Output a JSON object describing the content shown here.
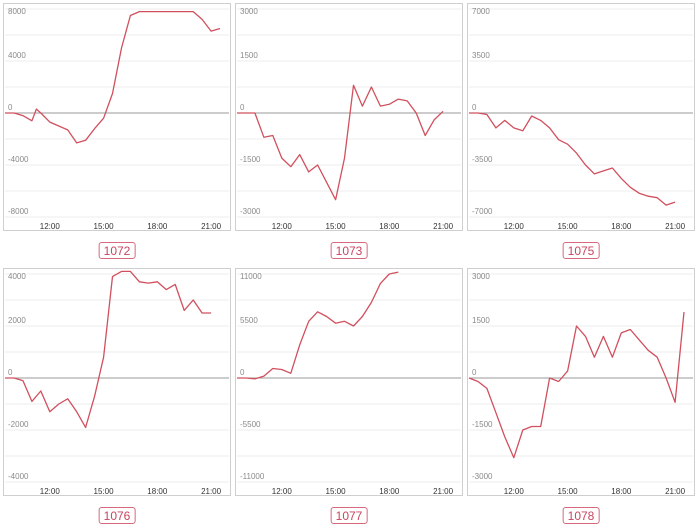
{
  "colors": {
    "line": "#d0505e",
    "zero": "#9a9a9a",
    "grid": "#ececec",
    "frame": "#cfcfcf",
    "tag": "#c8455f"
  },
  "chart_data": [
    {
      "type": "line",
      "title": "1072",
      "x_ticks": [
        "12:00",
        "15:00",
        "18:00",
        "21:00"
      ],
      "y_ticks": [
        8000,
        4000,
        0,
        -4000,
        -8000
      ],
      "ylim": [
        -8000,
        8000
      ],
      "x": [
        "09:30",
        "10:00",
        "10:30",
        "11:00",
        "11:15",
        "11:30",
        "12:00",
        "12:30",
        "13:00",
        "13:30",
        "14:00",
        "14:30",
        "15:00",
        "15:30",
        "16:00",
        "16:30",
        "17:00",
        "18:00",
        "19:00",
        "20:00",
        "20:30",
        "21:00",
        "21:30"
      ],
      "values": [
        0,
        0,
        -200,
        -600,
        300,
        0,
        -700,
        -1000,
        -1300,
        -2300,
        -2100,
        -1200,
        -400,
        1500,
        5000,
        7500,
        7800,
        7800,
        7800,
        7800,
        7200,
        6300,
        6500
      ]
    },
    {
      "type": "line",
      "title": "1073",
      "x_ticks": [
        "12:00",
        "15:00",
        "18:00",
        "21:00"
      ],
      "y_ticks": [
        3000,
        1500,
        0,
        -1500,
        -3000
      ],
      "ylim": [
        -3000,
        3000
      ],
      "x": [
        "09:30",
        "10:00",
        "10:30",
        "11:00",
        "11:30",
        "12:00",
        "12:30",
        "13:00",
        "13:30",
        "14:00",
        "14:30",
        "15:00",
        "15:30",
        "16:00",
        "16:30",
        "17:00",
        "17:30",
        "18:00",
        "18:30",
        "19:00",
        "19:30",
        "20:00",
        "20:30",
        "21:00"
      ],
      "values": [
        0,
        0,
        0,
        -700,
        -650,
        -1300,
        -1550,
        -1200,
        -1700,
        -1500,
        -2000,
        -2500,
        -1300,
        800,
        200,
        750,
        200,
        250,
        400,
        350,
        0,
        -650,
        -200,
        50
      ]
    },
    {
      "type": "line",
      "title": "1075",
      "x_ticks": [
        "12:00",
        "15:00",
        "18:00",
        "21:00"
      ],
      "y_ticks": [
        7000,
        3500,
        0,
        -3500,
        -7000
      ],
      "ylim": [
        -7000,
        7000
      ],
      "x": [
        "09:30",
        "10:00",
        "10:30",
        "11:00",
        "11:30",
        "12:00",
        "12:30",
        "13:00",
        "13:30",
        "14:00",
        "14:30",
        "15:00",
        "15:30",
        "16:00",
        "16:30",
        "17:00",
        "17:30",
        "18:00",
        "18:30",
        "19:00",
        "19:30",
        "20:00",
        "20:30",
        "21:00"
      ],
      "values": [
        0,
        0,
        -100,
        -1000,
        -500,
        -1000,
        -1200,
        -200,
        -500,
        -1000,
        -1800,
        -2100,
        -2700,
        -3500,
        -4100,
        -3900,
        -3700,
        -4400,
        -5000,
        -5400,
        -5600,
        -5700,
        -6200,
        -6000
      ]
    },
    {
      "type": "line",
      "title": "1076",
      "x_ticks": [
        "12:00",
        "15:00",
        "18:00",
        "21:00"
      ],
      "y_ticks": [
        4000,
        2000,
        0,
        -2000,
        -4000
      ],
      "ylim": [
        -4000,
        4000
      ],
      "x": [
        "09:30",
        "10:00",
        "10:30",
        "11:00",
        "11:30",
        "12:00",
        "12:30",
        "13:00",
        "13:30",
        "14:00",
        "14:30",
        "15:00",
        "15:30",
        "16:00",
        "16:30",
        "17:00",
        "17:30",
        "18:00",
        "18:30",
        "19:00",
        "19:30",
        "20:00",
        "20:30",
        "21:00"
      ],
      "values": [
        0,
        0,
        -100,
        -900,
        -500,
        -1300,
        -1000,
        -800,
        -1300,
        -1900,
        -700,
        800,
        3900,
        4100,
        4100,
        3700,
        3650,
        3700,
        3400,
        3600,
        2600,
        3000,
        2500,
        2500
      ]
    },
    {
      "type": "line",
      "title": "1077",
      "x_ticks": [
        "12:00",
        "15:00",
        "18:00",
        "21:00"
      ],
      "y_ticks": [
        11000,
        5500,
        0,
        -5500,
        -11000
      ],
      "ylim": [
        -11000,
        11000
      ],
      "x": [
        "09:30",
        "10:00",
        "10:30",
        "11:00",
        "11:30",
        "12:00",
        "12:30",
        "13:00",
        "13:30",
        "14:00",
        "14:30",
        "15:00",
        "15:30",
        "16:00",
        "16:30",
        "17:00",
        "17:30",
        "18:00",
        "18:30"
      ],
      "values": [
        0,
        0,
        -100,
        200,
        1000,
        900,
        500,
        3500,
        6000,
        7000,
        6500,
        5800,
        6000,
        5500,
        6500,
        8000,
        10000,
        11000,
        11200
      ]
    },
    {
      "type": "line",
      "title": "1078",
      "x_ticks": [
        "12:00",
        "15:00",
        "18:00",
        "21:00"
      ],
      "y_ticks": [
        3000,
        1500,
        0,
        -1500,
        -3000
      ],
      "ylim": [
        -3000,
        3000
      ],
      "x": [
        "09:30",
        "10:00",
        "10:30",
        "11:00",
        "11:30",
        "12:00",
        "12:30",
        "13:00",
        "13:30",
        "14:00",
        "14:30",
        "15:00",
        "15:30",
        "16:00",
        "16:30",
        "17:00",
        "17:30",
        "18:00",
        "18:30",
        "19:00",
        "19:30",
        "20:00",
        "20:30",
        "21:00",
        "21:30"
      ],
      "values": [
        0,
        -100,
        -300,
        -1000,
        -1700,
        -2300,
        -1500,
        -1400,
        -1400,
        0,
        -100,
        200,
        1500,
        1200,
        600,
        1200,
        600,
        1300,
        1400,
        1100,
        800,
        600,
        0,
        -700,
        1900
      ]
    }
  ]
}
